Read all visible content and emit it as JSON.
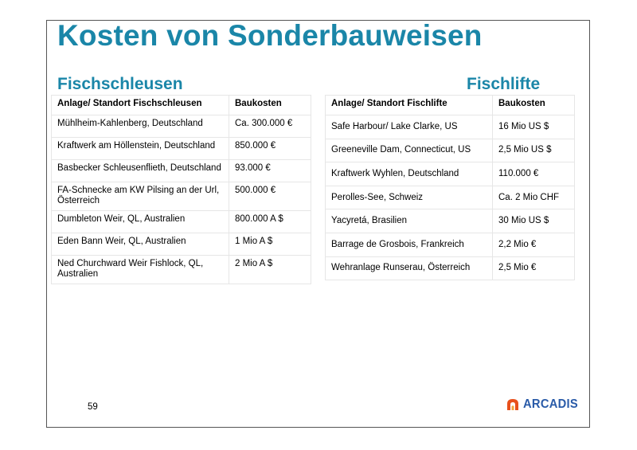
{
  "title": "Kosten von Sonderbauweisen",
  "left": {
    "heading": "Fischschleusen",
    "columns": [
      "Anlage/ Standort Fischschleusen",
      "Baukosten"
    ],
    "rows": [
      [
        "Mühlheim-Kahlenberg, Deutschland",
        "Ca. 300.000 €"
      ],
      [
        "Kraftwerk am Höllenstein, Deutschland",
        "850.000 €"
      ],
      [
        "Basbecker Schleusenflieth, Deutschland",
        "93.000 €"
      ],
      [
        "FA-Schnecke am KW Pilsing an der Url, Österreich",
        "500.000 €"
      ],
      [
        "Dumbleton Weir, QL, Australien",
        "800.000 A $"
      ],
      [
        "Eden Bann Weir, QL, Australien",
        "1 Mio A $"
      ],
      [
        "Ned Churchward Weir Fishlock, QL, Australien",
        "2 Mio A $"
      ]
    ]
  },
  "right": {
    "heading": "Fischlifte",
    "columns": [
      "Anlage/ Standort Fischlifte",
      "Baukosten"
    ],
    "rows": [
      [
        "Safe Harbour/ Lake Clarke, US",
        "16 Mio US $"
      ],
      [
        "Greeneville Dam, Connecticut, US",
        "2,5 Mio US $"
      ],
      [
        "Kraftwerk Wyhlen, Deutschland",
        "110.000 €"
      ],
      [
        "Perolles-See, Schweiz",
        "Ca. 2 Mio CHF"
      ],
      [
        "Yacyretá, Brasilien",
        "30 Mio US $"
      ],
      [
        "Barrage de Grosbois, Frankreich",
        "2,2 Mio €"
      ],
      [
        "Wehranlage Runserau, Österreich",
        "2,5 Mio €"
      ]
    ]
  },
  "footer": {
    "page_number": "59",
    "logo_text": "ARCADIS",
    "logo_icon": "arcadis-logo-icon",
    "logo_color": "#e8501c",
    "logo_text_color": "#2a5ba8"
  },
  "colors": {
    "title": "#1a86a8",
    "border": "#555555"
  }
}
